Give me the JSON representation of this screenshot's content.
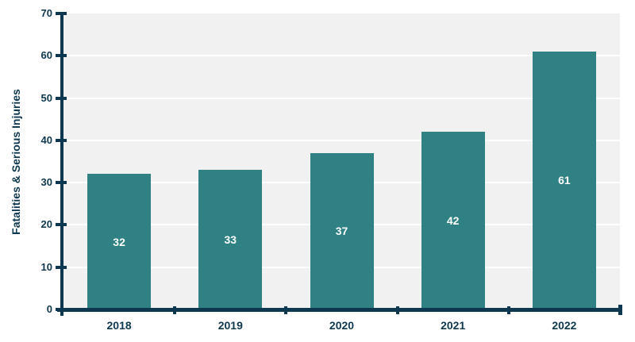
{
  "chart_data": {
    "type": "bar",
    "title": "",
    "categories": [
      "2018",
      "2019",
      "2020",
      "2021",
      "2022"
    ],
    "values": [
      32,
      33,
      37,
      42,
      61
    ],
    "value_labels": [
      "32",
      "33",
      "37",
      "42",
      "61"
    ],
    "xlabel": "",
    "ylabel": "Fatalities & Serious Injuries",
    "ylim": [
      0,
      70
    ],
    "yticks": [
      0,
      10,
      20,
      30,
      40,
      50,
      60,
      70
    ],
    "grid": true,
    "legend": "none",
    "colors": {
      "bar": "#2f8183",
      "axis": "#0e384f",
      "tick_label": "#0e384f",
      "plot_background": "#f1f1f2",
      "gridline": "#ffffff",
      "value_label": "#ffffff",
      "page_background": "#ffffff"
    }
  }
}
